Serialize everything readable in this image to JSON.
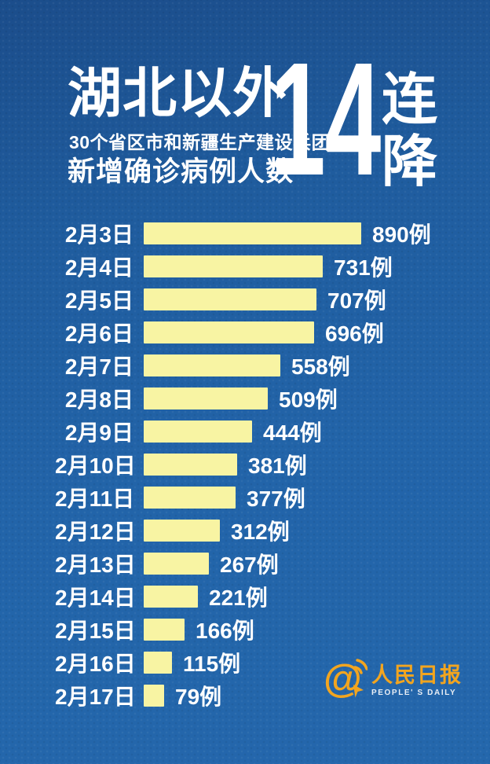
{
  "header": {
    "title": "湖北以外",
    "subtitle_line1": "30个省区市和新疆生产建设兵团",
    "subtitle_line2": "新增确诊病例人数",
    "big_number": "14",
    "big_suffix_top": "连",
    "big_suffix_bottom": "降"
  },
  "chart_data": {
    "type": "bar",
    "orientation": "horizontal",
    "title": "湖北以外30个省区市和新疆生产建设兵团新增确诊病例人数",
    "categories": [
      "2月3日",
      "2月4日",
      "2月5日",
      "2月6日",
      "2月7日",
      "2月8日",
      "2月9日",
      "2月10日",
      "2月11日",
      "2月12日",
      "2月13日",
      "2月14日",
      "2月15日",
      "2月16日",
      "2月17日"
    ],
    "values": [
      890,
      731,
      707,
      696,
      558,
      509,
      444,
      381,
      377,
      312,
      267,
      221,
      166,
      115,
      79
    ],
    "value_labels": [
      "890例",
      "731例",
      "707例",
      "696例",
      "558例",
      "509例",
      "444例",
      "381例",
      "377例",
      "312例",
      "267例",
      "221例",
      "166例",
      "115例",
      "79例"
    ],
    "unit": "例",
    "xlim": [
      0,
      890
    ],
    "grid": false,
    "bar_color": "#f8f4a3",
    "label_color": "#ffffff",
    "legend": "none"
  },
  "footer": {
    "logo": {
      "at_symbol": "@",
      "name_cn": "人民日报",
      "name_en": "PEOPLE' S DAILY",
      "color": "#f2a51f"
    }
  },
  "colors": {
    "background_top": "#1b4d8b",
    "background_bottom": "#2467ac",
    "bar": "#f8f4a3",
    "text": "#ffffff",
    "logo_gold": "#f2a51f"
  }
}
